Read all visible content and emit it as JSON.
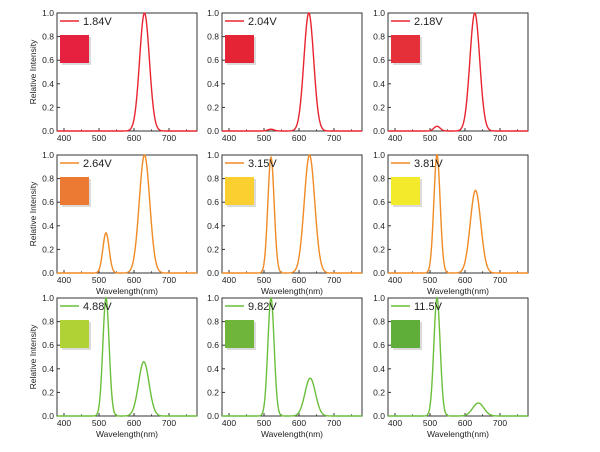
{
  "chart_data": [
    {
      "type": "line",
      "legend": "1.84V",
      "xlabel": "",
      "ylabel": "Relative Intensity",
      "xlim": [
        380,
        780
      ],
      "ylim": [
        0,
        1.0
      ],
      "xticks": [
        "400",
        "500",
        "600",
        "700"
      ],
      "yticks": [
        "0.0",
        "0.2",
        "0.4",
        "0.6",
        "0.8",
        "1.0"
      ],
      "line_color": "#e8252f",
      "swatch_color": "#e6203f",
      "peaks": [
        {
          "center": 630,
          "height": 1.0,
          "width": 14
        }
      ]
    },
    {
      "type": "line",
      "legend": "2.04V",
      "xlabel": "",
      "ylabel": "",
      "xlim": [
        380,
        780
      ],
      "ylim": [
        0,
        1.0
      ],
      "xticks": [
        "400",
        "500",
        "600",
        "700"
      ],
      "yticks": [
        "0.0",
        "0.2",
        "0.4",
        "0.6",
        "0.8",
        "1.0"
      ],
      "line_color": "#e8252f",
      "swatch_color": "#e52536",
      "peaks": [
        {
          "center": 628,
          "height": 1.0,
          "width": 14
        },
        {
          "center": 520,
          "height": 0.015,
          "width": 9
        }
      ]
    },
    {
      "type": "line",
      "legend": "2.18V",
      "xlabel": "",
      "ylabel": "",
      "xlim": [
        380,
        780
      ],
      "ylim": [
        0,
        1.0
      ],
      "xticks": [
        "400",
        "500",
        "600",
        "700"
      ],
      "yticks": [
        "0.0",
        "0.2",
        "0.4",
        "0.6",
        "0.8",
        "1.0"
      ],
      "line_color": "#e8252f",
      "swatch_color": "#e5303a",
      "peaks": [
        {
          "center": 628,
          "height": 1.0,
          "width": 14
        },
        {
          "center": 520,
          "height": 0.04,
          "width": 9
        }
      ]
    },
    {
      "type": "line",
      "legend": "2.64V",
      "xlabel": "Wavelength(nm)",
      "ylabel": "Relative Intensity",
      "xlim": [
        380,
        780
      ],
      "ylim": [
        0,
        1.0
      ],
      "xticks": [
        "400",
        "500",
        "600",
        "700"
      ],
      "yticks": [
        "0.0",
        "0.2",
        "0.4",
        "0.6",
        "0.8",
        "1.0"
      ],
      "line_color": "#f08a24",
      "swatch_color": "#ec7a33",
      "peaks": [
        {
          "center": 630,
          "height": 1.0,
          "width": 15
        },
        {
          "center": 520,
          "height": 0.34,
          "width": 9
        }
      ]
    },
    {
      "type": "line",
      "legend": "3.15V",
      "xlabel": "Wavelength(nm)",
      "ylabel": "",
      "xlim": [
        380,
        780
      ],
      "ylim": [
        0,
        1.0
      ],
      "xticks": [
        "400",
        "500",
        "600",
        "700"
      ],
      "yticks": [
        "0.0",
        "0.2",
        "0.4",
        "0.6",
        "0.8",
        "1.0"
      ],
      "line_color": "#f08a24",
      "swatch_color": "#fccf30",
      "peaks": [
        {
          "center": 630,
          "height": 1.0,
          "width": 15
        },
        {
          "center": 520,
          "height": 0.98,
          "width": 9
        }
      ]
    },
    {
      "type": "line",
      "legend": "3.81V",
      "xlabel": "Wavelength(nm)",
      "ylabel": "",
      "xlim": [
        380,
        780
      ],
      "ylim": [
        0,
        1.0
      ],
      "xticks": [
        "400",
        "500",
        "600",
        "700"
      ],
      "yticks": [
        "0.0",
        "0.2",
        "0.4",
        "0.6",
        "0.8",
        "1.0"
      ],
      "line_color": "#f08a24",
      "swatch_color": "#f2ea2a",
      "peaks": [
        {
          "center": 630,
          "height": 0.7,
          "width": 15
        },
        {
          "center": 520,
          "height": 1.0,
          "width": 9
        }
      ]
    },
    {
      "type": "line",
      "legend": "4.88V",
      "xlabel": "Wavelength(nm)",
      "ylabel": "Relative Intensity",
      "xlim": [
        380,
        780
      ],
      "ylim": [
        0,
        1.0
      ],
      "xticks": [
        "400",
        "500",
        "600",
        "700"
      ],
      "yticks": [
        "0.0",
        "0.2",
        "0.4",
        "0.6",
        "0.8",
        "1.0"
      ],
      "line_color": "#6abf3a",
      "swatch_color": "#b1d235",
      "peaks": [
        {
          "center": 520,
          "height": 1.0,
          "width": 9
        },
        {
          "center": 628,
          "height": 0.46,
          "width": 15
        }
      ]
    },
    {
      "type": "line",
      "legend": "9.82V",
      "xlabel": "Wavelength(nm)",
      "ylabel": "",
      "xlim": [
        380,
        780
      ],
      "ylim": [
        0,
        1.0
      ],
      "xticks": [
        "400",
        "500",
        "600",
        "700"
      ],
      "yticks": [
        "0.0",
        "0.2",
        "0.4",
        "0.6",
        "0.8",
        "1.0"
      ],
      "line_color": "#6abf3a",
      "swatch_color": "#6fb53a",
      "peaks": [
        {
          "center": 520,
          "height": 1.0,
          "width": 9
        },
        {
          "center": 632,
          "height": 0.32,
          "width": 15
        }
      ]
    },
    {
      "type": "line",
      "legend": "11.5V",
      "xlabel": "Wavelength(nm)",
      "ylabel": "",
      "xlim": [
        380,
        780
      ],
      "ylim": [
        0,
        1.0
      ],
      "xticks": [
        "400",
        "500",
        "600",
        "700"
      ],
      "yticks": [
        "0.0",
        "0.2",
        "0.4",
        "0.6",
        "0.8",
        "1.0"
      ],
      "line_color": "#6abf3a",
      "swatch_color": "#5fae3a",
      "peaks": [
        {
          "center": 520,
          "height": 1.0,
          "width": 9
        },
        {
          "center": 638,
          "height": 0.11,
          "width": 16
        }
      ]
    }
  ]
}
